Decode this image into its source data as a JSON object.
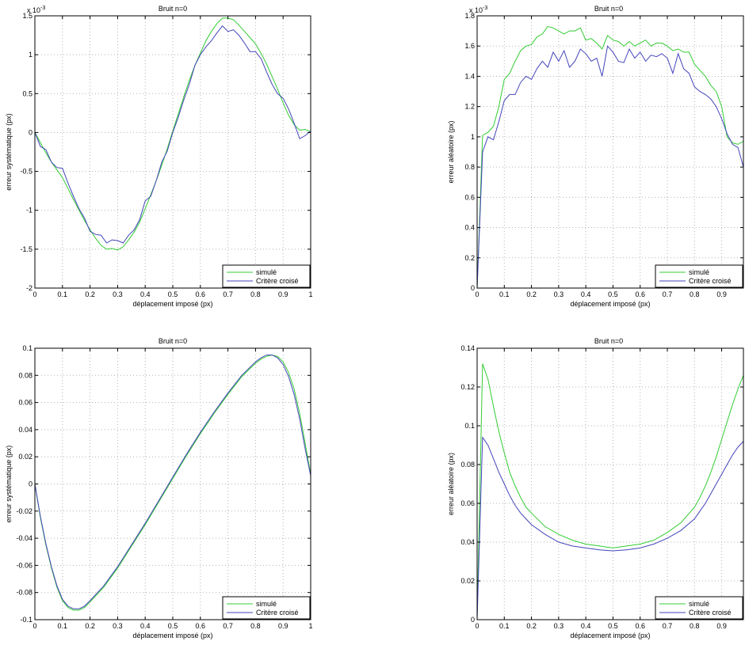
{
  "legend_labels": [
    "simulé",
    "Critère croisé"
  ],
  "colors": {
    "simule": "#33cc33",
    "critere": "#4444bb",
    "grid": "#b4b4b4",
    "axis": "#000000"
  },
  "chart_data": [
    {
      "type": "line",
      "title": "Bruit n=0",
      "xlabel": "déplacement imposé (px)",
      "ylabel": "erreur systématique (px)",
      "exponent_label": "x 10",
      "exponent_power": "-3",
      "xlim": [
        0,
        1
      ],
      "ylim": [
        -2,
        1.5
      ],
      "xticks": [
        0,
        0.1,
        0.2,
        0.3,
        0.4,
        0.5,
        0.6,
        0.7,
        0.8,
        0.9,
        1
      ],
      "xtick_labels": [
        "0",
        "0.1",
        "0.2",
        "0.3",
        "0.4",
        "0.5",
        "0.6",
        "0.7",
        "0.8",
        "0.9",
        "1"
      ],
      "yticks": [
        -2,
        -1.5,
        -1,
        -0.5,
        0,
        0.5,
        1,
        1.5
      ],
      "ytick_labels": [
        "-2",
        "-1.5",
        "-1",
        "-0.5",
        "0",
        "0.5",
        "1",
        "1.5"
      ],
      "grid": true,
      "legend_position": "bottom-right",
      "series": [
        {
          "name": "simulé",
          "x": [
            0,
            0.02,
            0.04,
            0.06,
            0.08,
            0.1,
            0.12,
            0.14,
            0.16,
            0.18,
            0.2,
            0.22,
            0.24,
            0.26,
            0.28,
            0.3,
            0.32,
            0.34,
            0.36,
            0.38,
            0.4,
            0.42,
            0.44,
            0.46,
            0.48,
            0.5,
            0.52,
            0.54,
            0.56,
            0.58,
            0.6,
            0.62,
            0.64,
            0.66,
            0.68,
            0.7,
            0.72,
            0.74,
            0.76,
            0.78,
            0.8,
            0.82,
            0.84,
            0.86,
            0.88,
            0.9,
            0.92,
            0.94,
            0.96,
            0.98,
            1
          ],
          "values": [
            0,
            -0.13,
            -0.26,
            -0.38,
            -0.48,
            -0.58,
            -0.72,
            -0.86,
            -1.0,
            -1.13,
            -1.25,
            -1.36,
            -1.45,
            -1.5,
            -1.49,
            -1.51,
            -1.47,
            -1.38,
            -1.28,
            -1.15,
            -0.98,
            -0.8,
            -0.62,
            -0.42,
            -0.21,
            0.02,
            0.24,
            0.46,
            0.67,
            0.86,
            1.02,
            1.18,
            1.3,
            1.4,
            1.47,
            1.47,
            1.45,
            1.38,
            1.3,
            1.22,
            1.14,
            1.02,
            0.88,
            0.72,
            0.56,
            0.38,
            0.22,
            0.1,
            0.03,
            0.04,
            0.01
          ]
        },
        {
          "name": "Critère croisé",
          "x": [
            0,
            0.02,
            0.04,
            0.06,
            0.08,
            0.1,
            0.12,
            0.14,
            0.16,
            0.18,
            0.2,
            0.22,
            0.24,
            0.26,
            0.28,
            0.3,
            0.32,
            0.34,
            0.36,
            0.38,
            0.4,
            0.42,
            0.44,
            0.46,
            0.48,
            0.5,
            0.52,
            0.54,
            0.56,
            0.58,
            0.6,
            0.62,
            0.64,
            0.66,
            0.68,
            0.7,
            0.72,
            0.74,
            0.76,
            0.78,
            0.8,
            0.82,
            0.84,
            0.86,
            0.88,
            0.9,
            0.92,
            0.94,
            0.96,
            0.98,
            1
          ],
          "values": [
            0,
            -0.18,
            -0.22,
            -0.38,
            -0.45,
            -0.46,
            -0.65,
            -0.82,
            -0.98,
            -1.1,
            -1.27,
            -1.31,
            -1.32,
            -1.42,
            -1.38,
            -1.39,
            -1.42,
            -1.32,
            -1.25,
            -1.12,
            -0.88,
            -0.82,
            -0.62,
            -0.38,
            -0.24,
            0.0,
            0.2,
            0.42,
            0.62,
            0.86,
            1.0,
            1.1,
            1.18,
            1.28,
            1.37,
            1.3,
            1.32,
            1.25,
            1.15,
            1.04,
            1.04,
            0.95,
            0.78,
            0.62,
            0.5,
            0.44,
            0.3,
            0.12,
            -0.08,
            -0.04,
            0.02
          ]
        }
      ]
    },
    {
      "type": "line",
      "title": "Bruit n=0",
      "xlabel": "déplacement imposé (px)",
      "ylabel": "erreur aléatoire (px)",
      "exponent_label": "x 10",
      "exponent_power": "-3",
      "xlim": [
        0,
        0.98
      ],
      "ylim": [
        0,
        1.8
      ],
      "xticks": [
        0,
        0.1,
        0.2,
        0.3,
        0.4,
        0.5,
        0.6,
        0.7,
        0.8,
        0.9
      ],
      "xtick_labels": [
        "0",
        "0.1",
        "0.2",
        "0.3",
        "0.4",
        "0.5",
        "0.6",
        "0.7",
        "0.8",
        "0.9"
      ],
      "yticks": [
        0,
        0.2,
        0.4,
        0.6,
        0.8,
        1,
        1.2,
        1.4,
        1.6,
        1.8
      ],
      "ytick_labels": [
        "0",
        "0.2",
        "0.4",
        "0.6",
        "0.8",
        "1",
        "1.2",
        "1.4",
        "1.6",
        "1.8"
      ],
      "grid": true,
      "legend_position": "bottom-right",
      "series": [
        {
          "name": "simulé",
          "x": [
            0,
            0.02,
            0.04,
            0.06,
            0.08,
            0.1,
            0.12,
            0.14,
            0.16,
            0.18,
            0.2,
            0.22,
            0.24,
            0.26,
            0.28,
            0.3,
            0.32,
            0.34,
            0.36,
            0.38,
            0.4,
            0.42,
            0.44,
            0.46,
            0.48,
            0.5,
            0.52,
            0.54,
            0.56,
            0.58,
            0.6,
            0.62,
            0.64,
            0.66,
            0.68,
            0.7,
            0.72,
            0.74,
            0.76,
            0.78,
            0.8,
            0.82,
            0.84,
            0.86,
            0.88,
            0.9,
            0.92,
            0.94,
            0.96,
            0.98
          ],
          "values": [
            0.0,
            1.01,
            1.03,
            1.07,
            1.2,
            1.38,
            1.42,
            1.5,
            1.57,
            1.6,
            1.61,
            1.66,
            1.68,
            1.73,
            1.72,
            1.7,
            1.68,
            1.7,
            1.7,
            1.72,
            1.64,
            1.65,
            1.62,
            1.58,
            1.67,
            1.64,
            1.63,
            1.6,
            1.63,
            1.6,
            1.62,
            1.64,
            1.6,
            1.62,
            1.62,
            1.6,
            1.57,
            1.58,
            1.56,
            1.56,
            1.48,
            1.44,
            1.4,
            1.34,
            1.3,
            1.2,
            1.0,
            0.96,
            0.95,
            0.97
          ]
        },
        {
          "name": "Critère croisé",
          "x": [
            0,
            0.02,
            0.04,
            0.06,
            0.08,
            0.1,
            0.12,
            0.14,
            0.16,
            0.18,
            0.2,
            0.22,
            0.24,
            0.26,
            0.28,
            0.3,
            0.32,
            0.34,
            0.36,
            0.38,
            0.4,
            0.42,
            0.44,
            0.46,
            0.48,
            0.5,
            0.52,
            0.54,
            0.56,
            0.58,
            0.6,
            0.62,
            0.64,
            0.66,
            0.68,
            0.7,
            0.72,
            0.74,
            0.76,
            0.78,
            0.8,
            0.82,
            0.84,
            0.86,
            0.88,
            0.9,
            0.92,
            0.94,
            0.96,
            0.98
          ],
          "values": [
            0.0,
            0.9,
            1.0,
            0.98,
            1.1,
            1.24,
            1.28,
            1.28,
            1.36,
            1.4,
            1.38,
            1.45,
            1.5,
            1.46,
            1.56,
            1.5,
            1.57,
            1.46,
            1.5,
            1.58,
            1.55,
            1.5,
            1.52,
            1.4,
            1.6,
            1.56,
            1.5,
            1.49,
            1.58,
            1.52,
            1.56,
            1.5,
            1.54,
            1.53,
            1.55,
            1.52,
            1.42,
            1.55,
            1.45,
            1.42,
            1.33,
            1.3,
            1.28,
            1.25,
            1.2,
            1.12,
            1.02,
            0.95,
            0.93,
            0.8
          ]
        }
      ]
    },
    {
      "type": "line",
      "title": "Bruit n=0",
      "xlabel": "déplacement imposé (px)",
      "ylabel": "erreur systématique (px)",
      "xlim": [
        0,
        1
      ],
      "ylim": [
        -0.1,
        0.1
      ],
      "xticks": [
        0,
        0.1,
        0.2,
        0.3,
        0.4,
        0.5,
        0.6,
        0.7,
        0.8,
        0.9,
        1
      ],
      "xtick_labels": [
        "0",
        "0.1",
        "0.2",
        "0.3",
        "0.4",
        "0.5",
        "0.6",
        "0.7",
        "0.8",
        "0.9",
        "1"
      ],
      "yticks": [
        -0.1,
        -0.08,
        -0.06,
        -0.04,
        -0.02,
        0,
        0.02,
        0.04,
        0.06,
        0.08,
        0.1
      ],
      "ytick_labels": [
        "-0.1",
        "-0.08",
        "-0.06",
        "-0.04",
        "-0.02",
        "0",
        "0.02",
        "0.04",
        "0.06",
        "0.08",
        "0.1"
      ],
      "grid": true,
      "legend_position": "bottom-right",
      "series": [
        {
          "name": "simulé",
          "x": [
            0,
            0.02,
            0.04,
            0.06,
            0.08,
            0.1,
            0.12,
            0.14,
            0.16,
            0.18,
            0.2,
            0.25,
            0.3,
            0.35,
            0.4,
            0.45,
            0.5,
            0.55,
            0.6,
            0.65,
            0.7,
            0.75,
            0.8,
            0.82,
            0.84,
            0.86,
            0.88,
            0.9,
            0.92,
            0.94,
            0.96,
            0.98,
            1
          ],
          "values": [
            0,
            -0.025,
            -0.045,
            -0.062,
            -0.076,
            -0.086,
            -0.091,
            -0.093,
            -0.093,
            -0.091,
            -0.087,
            -0.076,
            -0.062,
            -0.046,
            -0.03,
            -0.013,
            0.004,
            0.021,
            0.037,
            0.052,
            0.066,
            0.079,
            0.089,
            0.092,
            0.094,
            0.095,
            0.094,
            0.09,
            0.082,
            0.07,
            0.052,
            0.03,
            0.007
          ]
        },
        {
          "name": "Critère croisé",
          "x": [
            0,
            0.02,
            0.04,
            0.06,
            0.08,
            0.1,
            0.12,
            0.14,
            0.16,
            0.18,
            0.2,
            0.25,
            0.3,
            0.35,
            0.4,
            0.45,
            0.5,
            0.55,
            0.6,
            0.65,
            0.7,
            0.75,
            0.8,
            0.82,
            0.84,
            0.86,
            0.88,
            0.9,
            0.92,
            0.94,
            0.96,
            0.98,
            1
          ],
          "values": [
            0,
            -0.024,
            -0.044,
            -0.061,
            -0.075,
            -0.085,
            -0.09,
            -0.092,
            -0.092,
            -0.09,
            -0.086,
            -0.075,
            -0.061,
            -0.045,
            -0.029,
            -0.012,
            0.005,
            0.022,
            0.038,
            0.053,
            0.067,
            0.08,
            0.09,
            0.093,
            0.095,
            0.095,
            0.093,
            0.088,
            0.079,
            0.066,
            0.048,
            0.026,
            0.006
          ]
        }
      ]
    },
    {
      "type": "line",
      "title": "Bruit n=0",
      "xlabel": "déplacement imposé (px)",
      "ylabel": "erreur aléatoire (px)",
      "xlim": [
        0,
        0.98
      ],
      "ylim": [
        0,
        0.14
      ],
      "xticks": [
        0,
        0.1,
        0.2,
        0.3,
        0.4,
        0.5,
        0.6,
        0.7,
        0.8,
        0.9
      ],
      "xtick_labels": [
        "0",
        "0.1",
        "0.2",
        "0.3",
        "0.4",
        "0.5",
        "0.6",
        "0.7",
        "0.8",
        "0.9"
      ],
      "yticks": [
        0,
        0.02,
        0.04,
        0.06,
        0.08,
        0.1,
        0.12,
        0.14
      ],
      "ytick_labels": [
        "0",
        "0.02",
        "0.04",
        "0.06",
        "0.08",
        "0.1",
        "0.12",
        "0.14"
      ],
      "grid": true,
      "legend_position": "bottom-right",
      "series": [
        {
          "name": "simulé",
          "x": [
            0,
            0.02,
            0.04,
            0.06,
            0.08,
            0.1,
            0.12,
            0.14,
            0.16,
            0.18,
            0.2,
            0.25,
            0.3,
            0.35,
            0.4,
            0.45,
            0.5,
            0.55,
            0.6,
            0.65,
            0.7,
            0.75,
            0.8,
            0.82,
            0.84,
            0.86,
            0.88,
            0.9,
            0.92,
            0.94,
            0.96,
            0.98
          ],
          "values": [
            0.0,
            0.132,
            0.124,
            0.11,
            0.097,
            0.086,
            0.076,
            0.069,
            0.063,
            0.058,
            0.055,
            0.048,
            0.044,
            0.041,
            0.039,
            0.038,
            0.037,
            0.038,
            0.039,
            0.041,
            0.045,
            0.05,
            0.058,
            0.063,
            0.069,
            0.076,
            0.084,
            0.093,
            0.102,
            0.111,
            0.119,
            0.126
          ]
        },
        {
          "name": "Critère croisé",
          "x": [
            0,
            0.02,
            0.04,
            0.06,
            0.08,
            0.1,
            0.12,
            0.14,
            0.16,
            0.18,
            0.2,
            0.25,
            0.3,
            0.35,
            0.4,
            0.45,
            0.5,
            0.55,
            0.6,
            0.65,
            0.7,
            0.75,
            0.8,
            0.82,
            0.84,
            0.86,
            0.88,
            0.9,
            0.92,
            0.94,
            0.96,
            0.98
          ],
          "values": [
            0.0,
            0.094,
            0.09,
            0.083,
            0.076,
            0.07,
            0.064,
            0.059,
            0.055,
            0.052,
            0.049,
            0.044,
            0.04,
            0.038,
            0.037,
            0.036,
            0.0355,
            0.036,
            0.037,
            0.039,
            0.042,
            0.046,
            0.052,
            0.056,
            0.06,
            0.065,
            0.07,
            0.075,
            0.08,
            0.085,
            0.089,
            0.092
          ]
        }
      ]
    }
  ]
}
